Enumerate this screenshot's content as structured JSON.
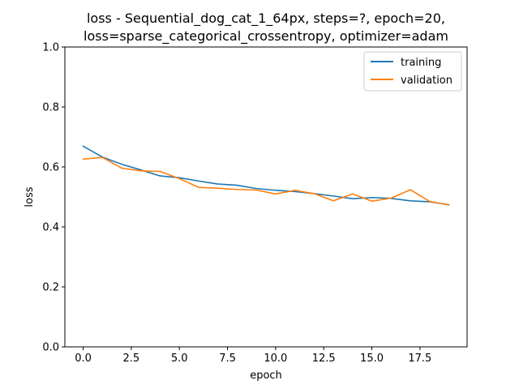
{
  "chart_data": {
    "type": "line",
    "title_lines": [
      "loss - Sequential_dog_cat_1_64px, steps=?, epoch=20,",
      "loss=sparse_categorical_crossentropy, optimizer=adam"
    ],
    "xlabel": "epoch",
    "ylabel": "loss",
    "xlim": [
      -0.95,
      19.95
    ],
    "ylim": [
      0.0,
      1.0
    ],
    "xticks": [
      0.0,
      2.5,
      5.0,
      7.5,
      10.0,
      12.5,
      15.0,
      17.5
    ],
    "xtick_labels": [
      "0.0",
      "2.5",
      "5.0",
      "7.5",
      "10.0",
      "12.5",
      "15.0",
      "17.5"
    ],
    "yticks": [
      0.0,
      0.2,
      0.4,
      0.6,
      0.8,
      1.0
    ],
    "ytick_labels": [
      "0.0",
      "0.2",
      "0.4",
      "0.6",
      "0.8",
      "1.0"
    ],
    "grid": false,
    "legend_position": "top-right",
    "x": [
      0,
      1,
      2,
      3,
      4,
      5,
      6,
      7,
      8,
      9,
      10,
      11,
      12,
      13,
      14,
      15,
      16,
      17,
      18,
      19
    ],
    "series": [
      {
        "name": "training",
        "color": "#1f77b4",
        "values": [
          0.669,
          0.633,
          0.609,
          0.59,
          0.57,
          0.564,
          0.553,
          0.543,
          0.539,
          0.528,
          0.522,
          0.518,
          0.511,
          0.503,
          0.494,
          0.498,
          0.495,
          0.487,
          0.484,
          0.474
        ]
      },
      {
        "name": "validation",
        "color": "#ff7f0e",
        "values": [
          0.626,
          0.632,
          0.596,
          0.587,
          0.585,
          0.561,
          0.532,
          0.529,
          0.525,
          0.523,
          0.51,
          0.522,
          0.511,
          0.487,
          0.51,
          0.486,
          0.496,
          0.524,
          0.485,
          0.473
        ]
      }
    ]
  }
}
